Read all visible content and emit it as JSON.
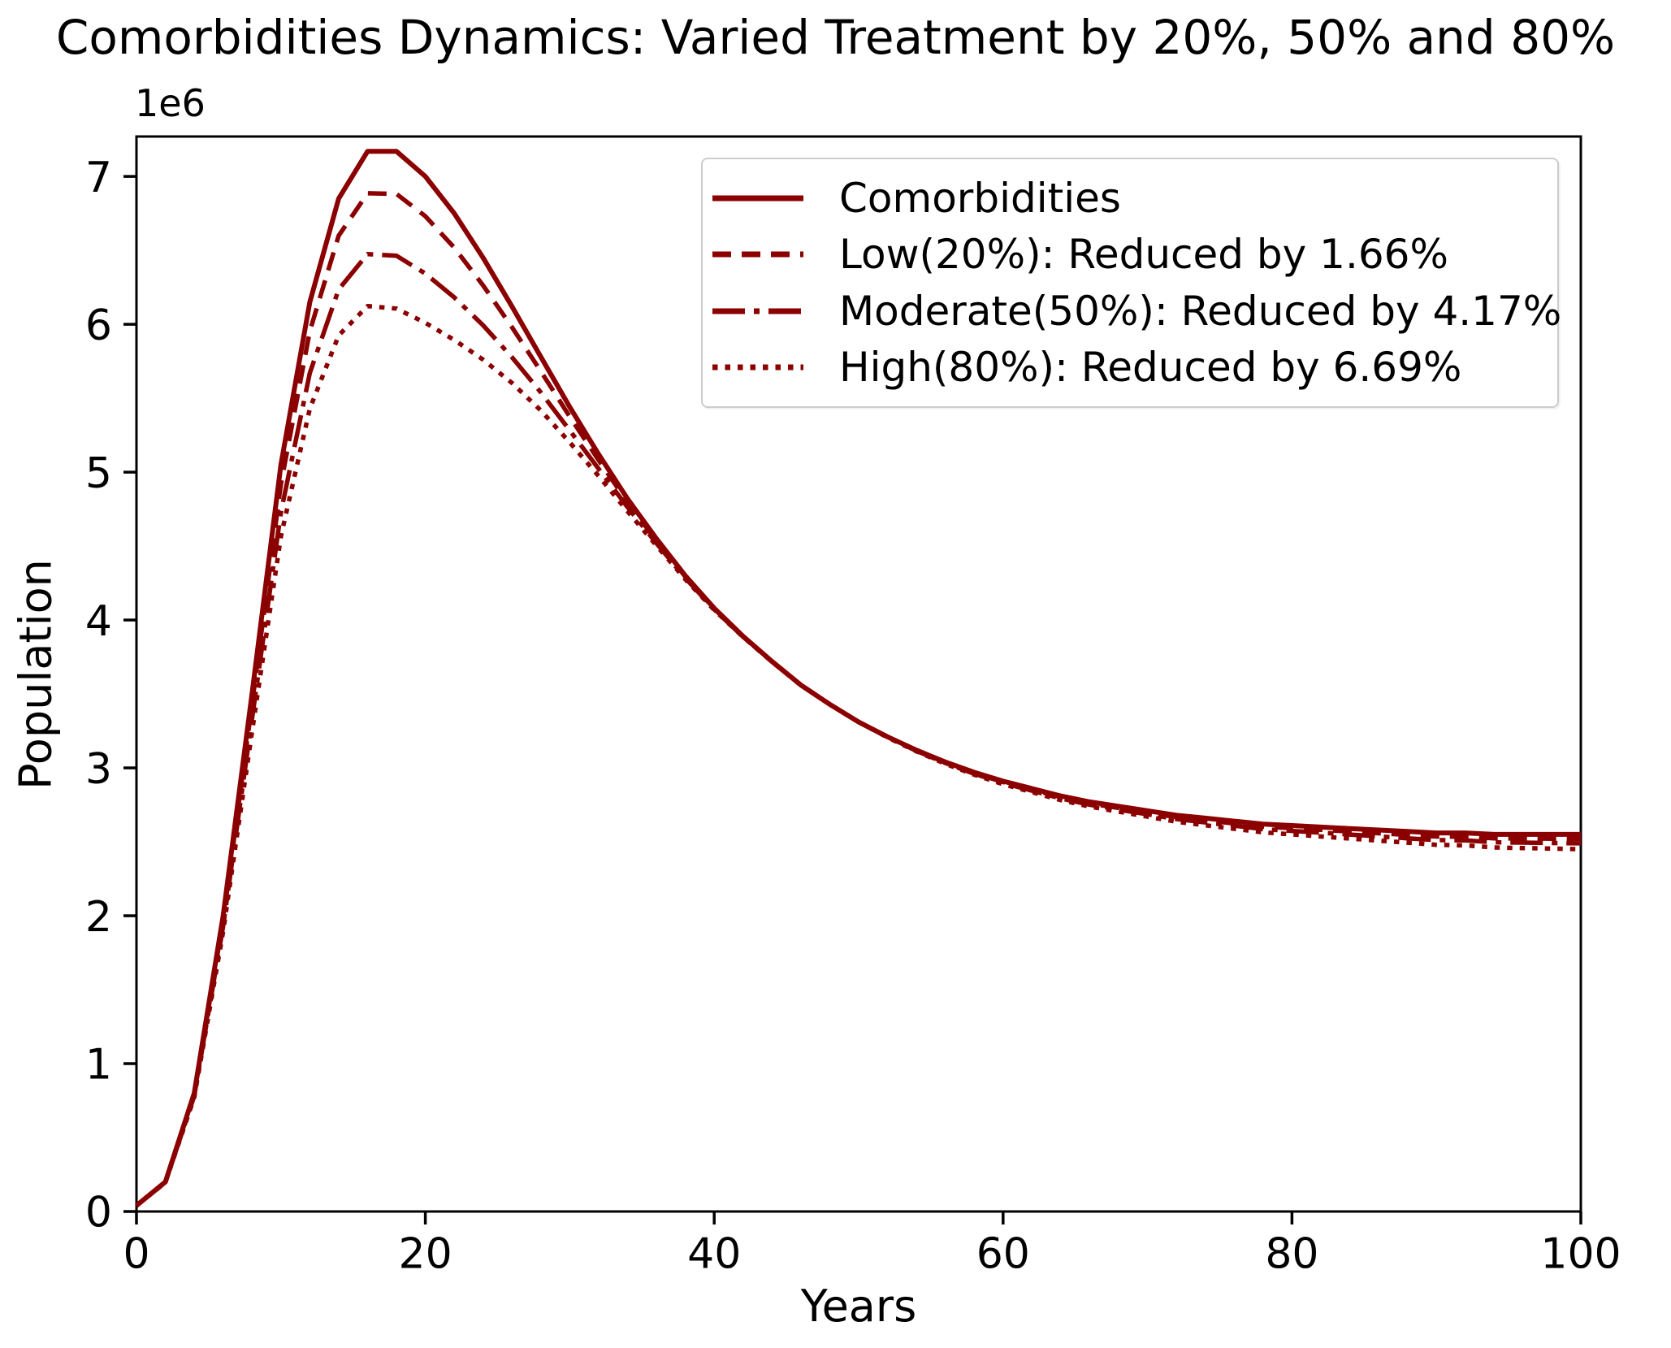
{
  "chart_data": {
    "type": "line",
    "title": "Comorbidities Dynamics: Varied Treatment by 20%, 50% and 80%",
    "xlabel": "Years",
    "ylabel": "Population",
    "y_offset_label": "1e6",
    "x_ticks": [
      0,
      20,
      40,
      60,
      80,
      100
    ],
    "y_ticks": [
      0,
      1,
      2,
      3,
      4,
      5,
      6,
      7
    ],
    "xlim": [
      0,
      100
    ],
    "ylim": [
      0,
      7.27
    ],
    "grid": false,
    "legend_position": "upper right",
    "line_color": "#8b0000",
    "x": [
      0,
      2,
      4,
      6,
      8,
      10,
      12,
      14,
      16,
      18,
      20,
      22,
      24,
      26,
      28,
      30,
      32,
      34,
      36,
      38,
      40,
      42,
      44,
      46,
      48,
      50,
      52,
      54,
      56,
      58,
      60,
      62,
      64,
      66,
      68,
      70,
      72,
      74,
      76,
      78,
      80,
      82,
      84,
      86,
      88,
      90,
      92,
      94,
      96,
      98,
      100
    ],
    "series": [
      {
        "name": "comorbidities",
        "label": "Comorbidities",
        "linestyle": "solid",
        "values": [
          0.04,
          0.2,
          0.8,
          2.0,
          3.5,
          5.05,
          6.15,
          6.85,
          7.17,
          7.17,
          7.0,
          6.75,
          6.45,
          6.12,
          5.78,
          5.44,
          5.12,
          4.82,
          4.55,
          4.3,
          4.08,
          3.89,
          3.72,
          3.56,
          3.43,
          3.31,
          3.21,
          3.12,
          3.04,
          2.97,
          2.91,
          2.86,
          2.81,
          2.77,
          2.74,
          2.71,
          2.68,
          2.66,
          2.64,
          2.62,
          2.61,
          2.6,
          2.59,
          2.58,
          2.57,
          2.56,
          2.56,
          2.55,
          2.55,
          2.55,
          2.55
        ]
      },
      {
        "name": "low-20",
        "label": "Low(20%): Reduced by 1.66%",
        "linestyle": "dashed",
        "values": [
          0.04,
          0.199,
          0.792,
          1.971,
          3.43,
          4.919,
          5.954,
          6.599,
          6.886,
          6.882,
          6.731,
          6.518,
          6.263,
          5.98,
          5.682,
          5.375,
          5.08,
          4.797,
          4.537,
          4.294,
          4.077,
          3.889,
          3.72,
          3.56,
          3.43,
          3.31,
          3.209,
          3.118,
          3.036,
          2.965,
          2.904,
          2.853,
          2.802,
          2.76,
          2.729,
          2.698,
          2.667,
          2.646,
          2.624,
          2.603,
          2.592,
          2.581,
          2.57,
          2.558,
          2.547,
          2.536,
          2.535,
          2.524,
          2.522,
          2.521,
          2.52
        ]
      },
      {
        "name": "moderate-50",
        "label": "Moderate(50%): Reduced by 4.17%",
        "linestyle": "dashdot",
        "values": [
          0.04,
          0.197,
          0.781,
          1.93,
          3.33,
          4.729,
          5.671,
          6.236,
          6.475,
          6.464,
          6.343,
          6.182,
          5.993,
          5.777,
          5.539,
          5.282,
          5.022,
          4.763,
          4.519,
          4.284,
          4.072,
          3.886,
          3.718,
          3.559,
          3.43,
          3.31,
          3.208,
          3.115,
          3.033,
          2.96,
          2.898,
          2.846,
          2.793,
          2.751,
          2.718,
          2.686,
          2.654,
          2.631,
          2.609,
          2.586,
          2.574,
          2.562,
          2.549,
          2.537,
          2.524,
          2.512,
          2.51,
          2.497,
          2.495,
          2.492,
          2.49
        ]
      },
      {
        "name": "high-80",
        "label": "High(80%): Reduced by 6.69%",
        "linestyle": "dotted",
        "values": [
          0.04,
          0.196,
          0.771,
          1.894,
          3.243,
          4.566,
          5.429,
          5.925,
          6.123,
          6.106,
          6.01,
          5.894,
          5.761,
          5.603,
          5.417,
          5.201,
          4.973,
          4.735,
          4.504,
          4.276,
          4.068,
          3.885,
          3.718,
          3.559,
          3.43,
          3.31,
          3.206,
          3.112,
          3.028,
          2.954,
          2.89,
          2.836,
          2.782,
          2.738,
          2.704,
          2.67,
          2.636,
          2.612,
          2.588,
          2.564,
          2.55,
          2.536,
          2.522,
          2.508,
          2.494,
          2.48,
          2.476,
          2.462,
          2.458,
          2.454,
          2.45
        ]
      }
    ]
  }
}
